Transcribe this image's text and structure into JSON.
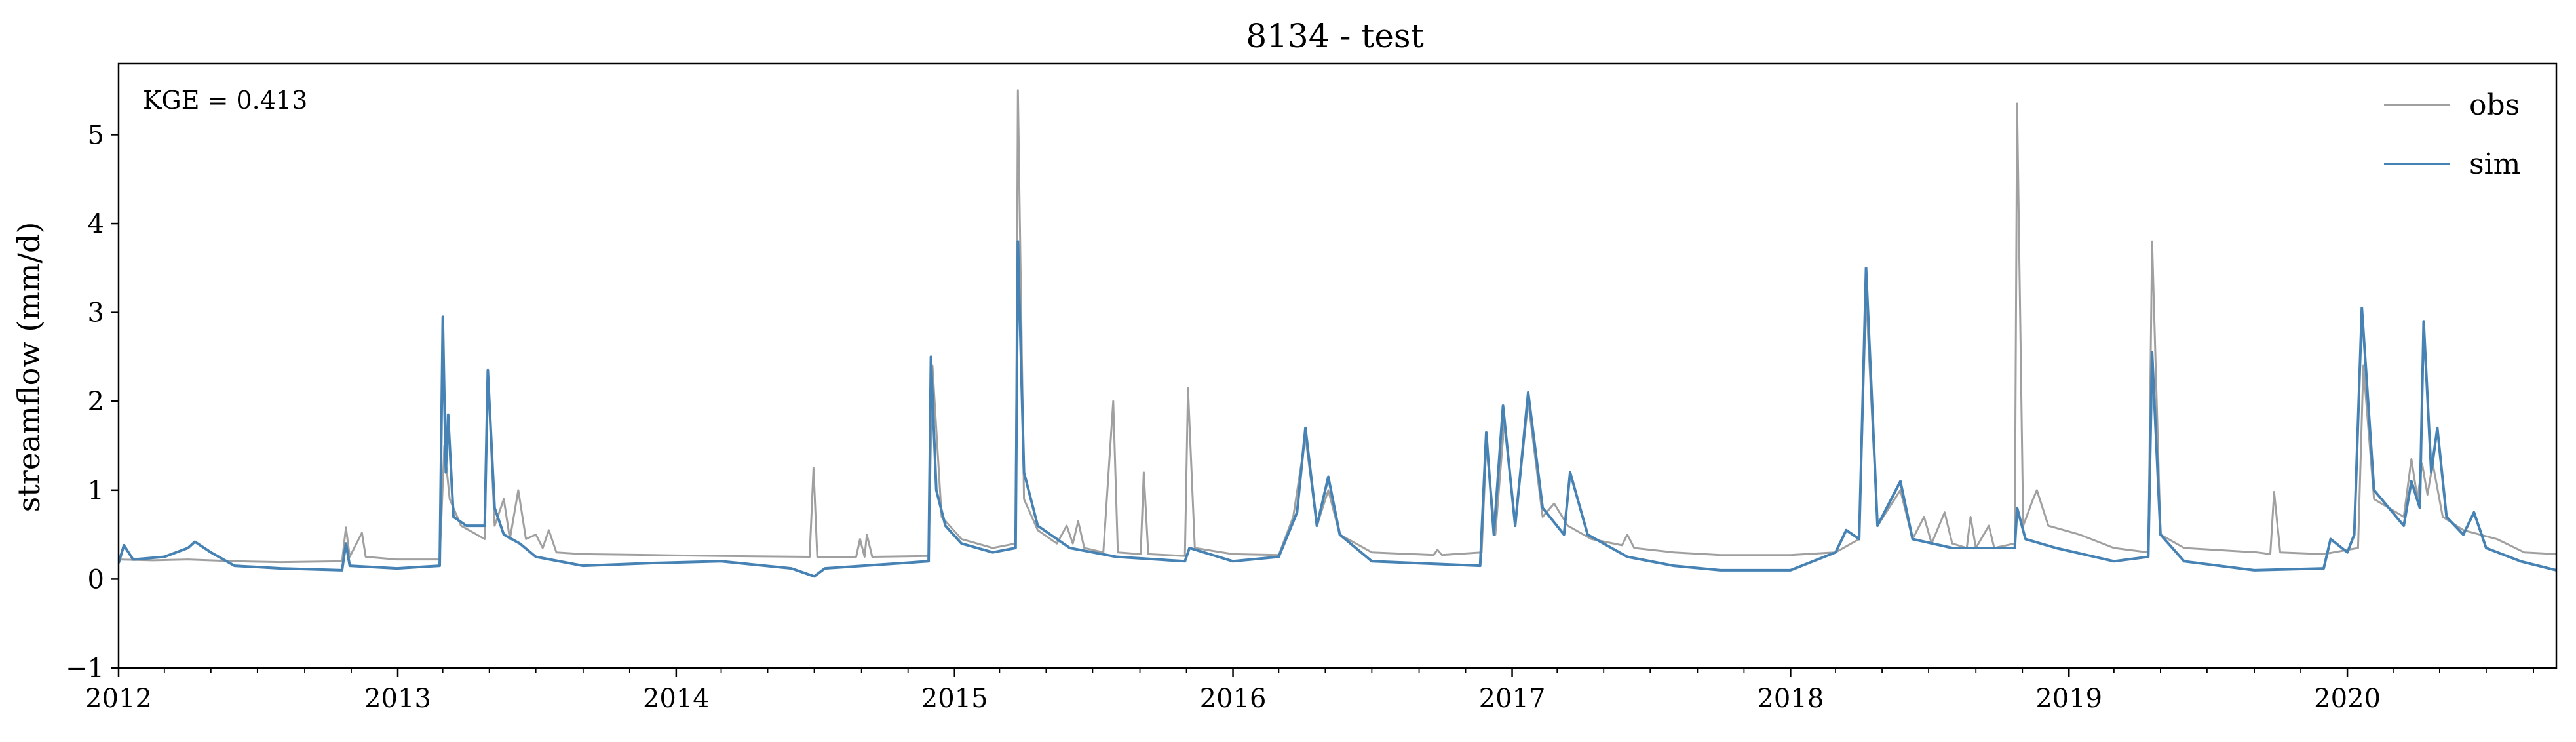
{
  "chart_data": {
    "type": "line",
    "title": "8134 - test",
    "xlabel": "",
    "ylabel": "streamflow (mm/d)",
    "xlim": [
      "2012-01-01",
      "2020-10-01"
    ],
    "ylim": [
      -1,
      5.8
    ],
    "yticks": [
      -1,
      0,
      1,
      2,
      3,
      4,
      5
    ],
    "ytick_labels": [
      "−1",
      "0",
      "1",
      "2",
      "3",
      "4",
      "5"
    ],
    "xticks": [
      "2012-01-01",
      "2013-01-01",
      "2014-01-01",
      "2015-01-01",
      "2016-01-01",
      "2017-01-01",
      "2018-01-01",
      "2019-01-01",
      "2020-01-01"
    ],
    "xtick_labels": [
      "2012",
      "2013",
      "2014",
      "2015",
      "2016",
      "2017",
      "2018",
      "2019",
      "2020"
    ],
    "grid": false,
    "legend_position": "top-right",
    "annotation": "KGE = 0.413",
    "series": [
      {
        "name": "obs",
        "color": "#a0a0a0",
        "points": [
          [
            "2012-01-01",
            0.22
          ],
          [
            "2012-02-15",
            0.21
          ],
          [
            "2012-04-01",
            0.22
          ],
          [
            "2012-06-01",
            0.2
          ],
          [
            "2012-08-01",
            0.19
          ],
          [
            "2012-10-20",
            0.2
          ],
          [
            "2012-10-25",
            0.58
          ],
          [
            "2012-10-30",
            0.25
          ],
          [
            "2012-11-15",
            0.52
          ],
          [
            "2012-11-20",
            0.25
          ],
          [
            "2012-12-31",
            0.22
          ],
          [
            "2013-02-25",
            0.22
          ],
          [
            "2013-03-03",
            1.5
          ],
          [
            "2013-03-10",
            0.9
          ],
          [
            "2013-03-25",
            0.6
          ],
          [
            "2013-04-25",
            0.45
          ],
          [
            "2013-04-29",
            2.3
          ],
          [
            "2013-05-08",
            0.6
          ],
          [
            "2013-05-20",
            0.9
          ],
          [
            "2013-05-28",
            0.45
          ],
          [
            "2013-06-08",
            1.0
          ],
          [
            "2013-06-18",
            0.45
          ],
          [
            "2013-07-01",
            0.5
          ],
          [
            "2013-07-10",
            0.35
          ],
          [
            "2013-07-18",
            0.55
          ],
          [
            "2013-07-28",
            0.3
          ],
          [
            "2013-09-01",
            0.28
          ],
          [
            "2013-12-01",
            0.27
          ],
          [
            "2014-03-01",
            0.26
          ],
          [
            "2014-06-25",
            0.25
          ],
          [
            "2014-06-30",
            1.25
          ],
          [
            "2014-07-05",
            0.25
          ],
          [
            "2014-08-25",
            0.25
          ],
          [
            "2014-08-30",
            0.45
          ],
          [
            "2014-09-05",
            0.25
          ],
          [
            "2014-09-08",
            0.5
          ],
          [
            "2014-09-15",
            0.25
          ],
          [
            "2014-11-28",
            0.26
          ],
          [
            "2014-12-03",
            2.4
          ],
          [
            "2014-12-15",
            0.7
          ],
          [
            "2015-01-10",
            0.45
          ],
          [
            "2015-02-20",
            0.35
          ],
          [
            "2015-03-22",
            0.4
          ],
          [
            "2015-03-25",
            5.5
          ],
          [
            "2015-04-02",
            0.9
          ],
          [
            "2015-04-20",
            0.55
          ],
          [
            "2015-05-15",
            0.4
          ],
          [
            "2015-05-28",
            0.6
          ],
          [
            "2015-06-05",
            0.4
          ],
          [
            "2015-06-12",
            0.65
          ],
          [
            "2015-06-20",
            0.35
          ],
          [
            "2015-07-15",
            0.3
          ],
          [
            "2015-07-28",
            2.0
          ],
          [
            "2015-08-03",
            0.3
          ],
          [
            "2015-09-02",
            0.28
          ],
          [
            "2015-09-06",
            1.2
          ],
          [
            "2015-09-12",
            0.28
          ],
          [
            "2015-10-30",
            0.26
          ],
          [
            "2015-11-03",
            2.15
          ],
          [
            "2015-11-12",
            0.35
          ],
          [
            "2016-01-01",
            0.28
          ],
          [
            "2016-03-01",
            0.27
          ],
          [
            "2016-03-20",
            0.7
          ],
          [
            "2016-04-05",
            1.6
          ],
          [
            "2016-04-20",
            0.6
          ],
          [
            "2016-05-05",
            1.0
          ],
          [
            "2016-05-20",
            0.5
          ],
          [
            "2016-07-01",
            0.3
          ],
          [
            "2016-09-20",
            0.27
          ],
          [
            "2016-09-25",
            0.33
          ],
          [
            "2016-10-01",
            0.27
          ],
          [
            "2016-11-22",
            0.3
          ],
          [
            "2016-11-28",
            1.5
          ],
          [
            "2016-12-10",
            0.5
          ],
          [
            "2016-12-22",
            1.8
          ],
          [
            "2017-01-05",
            0.6
          ],
          [
            "2017-01-22",
            2.0
          ],
          [
            "2017-02-10",
            0.7
          ],
          [
            "2017-02-25",
            0.85
          ],
          [
            "2017-03-15",
            0.6
          ],
          [
            "2017-04-15",
            0.45
          ],
          [
            "2017-05-25",
            0.38
          ],
          [
            "2017-06-01",
            0.5
          ],
          [
            "2017-06-10",
            0.35
          ],
          [
            "2017-08-01",
            0.3
          ],
          [
            "2017-10-01",
            0.27
          ],
          [
            "2018-01-01",
            0.27
          ],
          [
            "2018-03-01",
            0.3
          ],
          [
            "2018-04-01",
            0.45
          ],
          [
            "2018-04-10",
            3.2
          ],
          [
            "2018-04-25",
            0.6
          ],
          [
            "2018-05-25",
            1.0
          ],
          [
            "2018-06-10",
            0.45
          ],
          [
            "2018-06-25",
            0.7
          ],
          [
            "2018-07-05",
            0.4
          ],
          [
            "2018-07-22",
            0.75
          ],
          [
            "2018-08-01",
            0.4
          ],
          [
            "2018-08-20",
            0.35
          ],
          [
            "2018-08-25",
            0.7
          ],
          [
            "2018-09-01",
            0.35
          ],
          [
            "2018-09-18",
            0.6
          ],
          [
            "2018-09-25",
            0.35
          ],
          [
            "2018-10-22",
            0.4
          ],
          [
            "2018-10-25",
            5.35
          ],
          [
            "2018-11-02",
            0.6
          ],
          [
            "2018-11-15",
            0.9
          ],
          [
            "2018-11-20",
            1.0
          ],
          [
            "2018-12-05",
            0.6
          ],
          [
            "2019-01-15",
            0.5
          ],
          [
            "2019-03-01",
            0.35
          ],
          [
            "2019-04-15",
            0.3
          ],
          [
            "2019-04-20",
            3.8
          ],
          [
            "2019-05-01",
            0.5
          ],
          [
            "2019-06-01",
            0.35
          ],
          [
            "2019-09-05",
            0.3
          ],
          [
            "2019-09-22",
            0.28
          ],
          [
            "2019-09-27",
            0.98
          ],
          [
            "2019-10-05",
            0.3
          ],
          [
            "2019-12-01",
            0.28
          ],
          [
            "2020-01-15",
            0.35
          ],
          [
            "2020-01-22",
            2.4
          ],
          [
            "2020-02-05",
            0.9
          ],
          [
            "2020-03-15",
            0.7
          ],
          [
            "2020-03-25",
            1.35
          ],
          [
            "2020-04-02",
            0.9
          ],
          [
            "2020-04-08",
            1.3
          ],
          [
            "2020-04-15",
            0.95
          ],
          [
            "2020-04-22",
            1.3
          ],
          [
            "2020-05-05",
            0.7
          ],
          [
            "2020-06-01",
            0.55
          ],
          [
            "2020-07-15",
            0.45
          ],
          [
            "2020-08-20",
            0.3
          ],
          [
            "2020-10-01",
            0.28
          ]
        ]
      },
      {
        "name": "sim",
        "color": "#4682b4",
        "points": [
          [
            "2012-01-01",
            0.18
          ],
          [
            "2012-01-08",
            0.38
          ],
          [
            "2012-01-20",
            0.22
          ],
          [
            "2012-03-01",
            0.25
          ],
          [
            "2012-04-01",
            0.35
          ],
          [
            "2012-04-10",
            0.42
          ],
          [
            "2012-05-01",
            0.3
          ],
          [
            "2012-06-01",
            0.15
          ],
          [
            "2012-08-01",
            0.12
          ],
          [
            "2012-10-20",
            0.1
          ],
          [
            "2012-10-25",
            0.4
          ],
          [
            "2012-10-30",
            0.15
          ],
          [
            "2012-12-31",
            0.12
          ],
          [
            "2013-02-25",
            0.15
          ],
          [
            "2013-03-01",
            2.95
          ],
          [
            "2013-03-05",
            1.2
          ],
          [
            "2013-03-08",
            1.85
          ],
          [
            "2013-03-15",
            0.7
          ],
          [
            "2013-04-01",
            0.6
          ],
          [
            "2013-04-25",
            0.6
          ],
          [
            "2013-04-29",
            2.35
          ],
          [
            "2013-05-08",
            0.8
          ],
          [
            "2013-05-20",
            0.5
          ],
          [
            "2013-06-10",
            0.4
          ],
          [
            "2013-07-01",
            0.25
          ],
          [
            "2013-09-01",
            0.15
          ],
          [
            "2013-12-01",
            0.18
          ],
          [
            "2014-03-01",
            0.2
          ],
          [
            "2014-06-01",
            0.12
          ],
          [
            "2014-07-01",
            0.03
          ],
          [
            "2014-07-15",
            0.12
          ],
          [
            "2014-11-28",
            0.2
          ],
          [
            "2014-12-01",
            2.5
          ],
          [
            "2014-12-08",
            1.0
          ],
          [
            "2014-12-20",
            0.6
          ],
          [
            "2015-01-10",
            0.4
          ],
          [
            "2015-02-20",
            0.3
          ],
          [
            "2015-03-22",
            0.35
          ],
          [
            "2015-03-25",
            3.8
          ],
          [
            "2015-04-02",
            1.2
          ],
          [
            "2015-04-20",
            0.6
          ],
          [
            "2015-06-01",
            0.35
          ],
          [
            "2015-08-01",
            0.25
          ],
          [
            "2015-10-30",
            0.2
          ],
          [
            "2015-11-05",
            0.35
          ],
          [
            "2016-01-01",
            0.2
          ],
          [
            "2016-03-01",
            0.25
          ],
          [
            "2016-03-25",
            0.75
          ],
          [
            "2016-04-05",
            1.7
          ],
          [
            "2016-04-20",
            0.6
          ],
          [
            "2016-05-05",
            1.15
          ],
          [
            "2016-05-20",
            0.5
          ],
          [
            "2016-07-01",
            0.2
          ],
          [
            "2016-11-20",
            0.15
          ],
          [
            "2016-11-28",
            1.65
          ],
          [
            "2016-12-08",
            0.5
          ],
          [
            "2016-12-20",
            1.95
          ],
          [
            "2017-01-05",
            0.6
          ],
          [
            "2017-01-22",
            2.1
          ],
          [
            "2017-02-10",
            0.8
          ],
          [
            "2017-03-10",
            0.5
          ],
          [
            "2017-03-18",
            1.2
          ],
          [
            "2017-04-10",
            0.5
          ],
          [
            "2017-06-01",
            0.25
          ],
          [
            "2017-08-01",
            0.15
          ],
          [
            "2017-10-01",
            0.1
          ],
          [
            "2018-01-01",
            0.1
          ],
          [
            "2018-03-01",
            0.3
          ],
          [
            "2018-03-15",
            0.55
          ],
          [
            "2018-04-01",
            0.45
          ],
          [
            "2018-04-10",
            3.5
          ],
          [
            "2018-04-25",
            0.6
          ],
          [
            "2018-05-25",
            1.1
          ],
          [
            "2018-06-10",
            0.45
          ],
          [
            "2018-08-01",
            0.35
          ],
          [
            "2018-10-22",
            0.35
          ],
          [
            "2018-10-25",
            0.8
          ],
          [
            "2018-11-05",
            0.45
          ],
          [
            "2018-12-15",
            0.35
          ],
          [
            "2019-03-01",
            0.2
          ],
          [
            "2019-04-15",
            0.25
          ],
          [
            "2019-04-20",
            2.55
          ],
          [
            "2019-05-01",
            0.5
          ],
          [
            "2019-06-01",
            0.2
          ],
          [
            "2019-09-01",
            0.1
          ],
          [
            "2019-12-01",
            0.12
          ],
          [
            "2019-12-10",
            0.45
          ],
          [
            "2020-01-01",
            0.3
          ],
          [
            "2020-01-10",
            0.5
          ],
          [
            "2020-01-20",
            3.05
          ],
          [
            "2020-02-05",
            1.0
          ],
          [
            "2020-03-15",
            0.6
          ],
          [
            "2020-03-25",
            1.1
          ],
          [
            "2020-04-05",
            0.8
          ],
          [
            "2020-04-10",
            2.9
          ],
          [
            "2020-04-20",
            1.2
          ],
          [
            "2020-04-28",
            1.7
          ],
          [
            "2020-05-10",
            0.7
          ],
          [
            "2020-06-01",
            0.5
          ],
          [
            "2020-06-15",
            0.75
          ],
          [
            "2020-07-01",
            0.35
          ],
          [
            "2020-08-15",
            0.2
          ],
          [
            "2020-10-01",
            0.1
          ]
        ]
      }
    ]
  }
}
